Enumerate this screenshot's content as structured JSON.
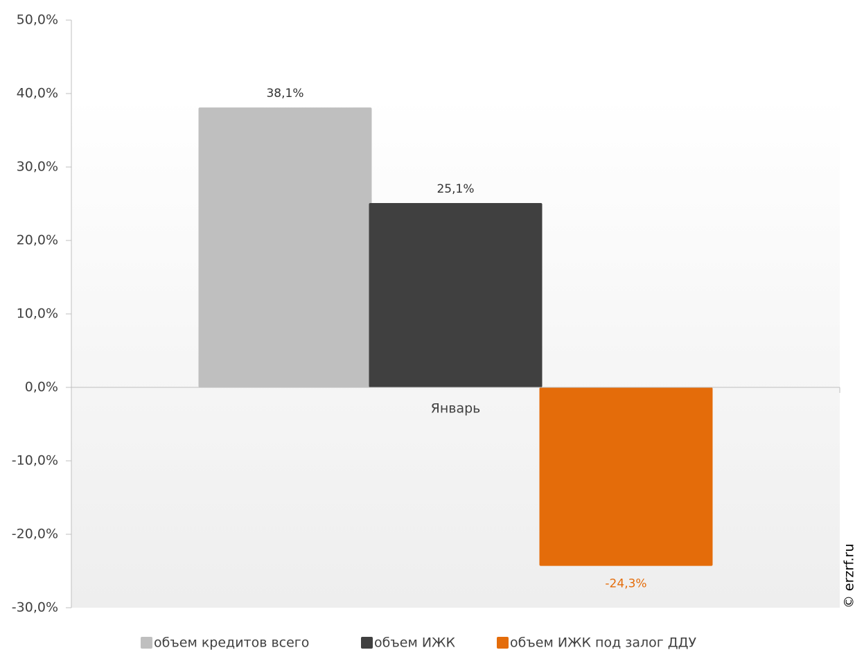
{
  "chart_data": {
    "type": "bar",
    "categories": [
      "Январь"
    ],
    "series": [
      {
        "name": "объем кредитов всего",
        "color": "#bfbfbf",
        "label_color": "#333333",
        "values": [
          38.1
        ],
        "value_labels": [
          "38,1%"
        ]
      },
      {
        "name": "объем ИЖК",
        "color": "#404040",
        "label_color": "#333333",
        "values": [
          25.1
        ],
        "value_labels": [
          "25,1%"
        ]
      },
      {
        "name": "объем ИЖК под залог ДДУ",
        "color": "#e46c0a",
        "label_color": "#e46c0a",
        "values": [
          -24.3
        ],
        "value_labels": [
          "-24,3%"
        ]
      }
    ],
    "ylim": [
      -30,
      50
    ],
    "yticks": [
      {
        "value": -30,
        "label": "-30,0%"
      },
      {
        "value": -20,
        "label": "-20,0%"
      },
      {
        "value": -10,
        "label": "-10,0%"
      },
      {
        "value": 0,
        "label": "0,0%"
      },
      {
        "value": 10,
        "label": "10,0%"
      },
      {
        "value": 20,
        "label": "20,0%"
      },
      {
        "value": 30,
        "label": "30,0%"
      },
      {
        "value": 40,
        "label": "40,0%"
      },
      {
        "value": 50,
        "label": "50,0%"
      }
    ],
    "legend": "bottom",
    "watermark": "© erzrf.ru"
  }
}
